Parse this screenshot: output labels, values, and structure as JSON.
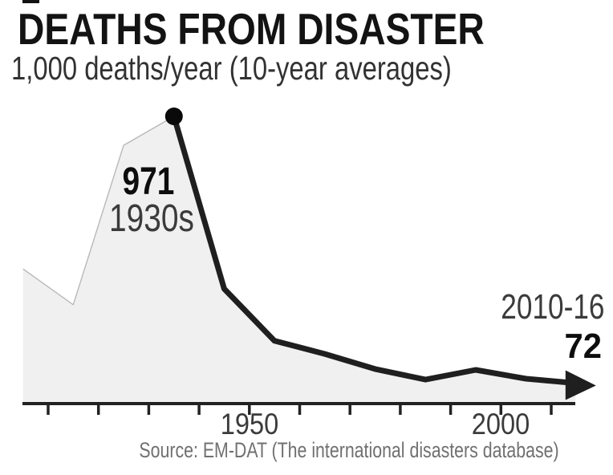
{
  "header": {
    "title": "DEATHS FROM DISASTER",
    "subtitle": "1,000 deaths/year (10-year averages)"
  },
  "annotations": {
    "peak": {
      "value": "971",
      "decade": "1930s"
    },
    "end": {
      "period": "2010-16",
      "value": "72"
    }
  },
  "footer": {
    "source": "Source: EM-DAT (The international disasters database)"
  },
  "chart_data": {
    "type": "area",
    "title": "DEATHS FROM DISASTER",
    "subtitle": "1,000 deaths/year (10-year averages)",
    "unit": "1,000 deaths/year (10-year averages)",
    "x_axis": {
      "tick_years": [
        1910,
        1920,
        1930,
        1940,
        1950,
        1960,
        1970,
        1980,
        1990,
        2000,
        2010
      ],
      "labeled_ticks": [
        {
          "year": 1950,
          "label": "1950"
        },
        {
          "year": 2000,
          "label": "2000"
        }
      ],
      "range": [
        1905,
        2016
      ],
      "grid": false
    },
    "y_axis": {
      "visible": false,
      "range": [
        0,
        1000
      ]
    },
    "points": [
      {
        "decade": "1900s",
        "year_mid": 1905,
        "value": 455,
        "estimated": true
      },
      {
        "decade": "1910s",
        "year_mid": 1915,
        "value": 334,
        "estimated": true
      },
      {
        "decade": "1920s",
        "year_mid": 1925,
        "value": 873,
        "estimated": true
      },
      {
        "decade": "1930s",
        "year_mid": 1935,
        "value": 971,
        "estimated": false
      },
      {
        "decade": "1940s",
        "year_mid": 1945,
        "value": 388,
        "estimated": true
      },
      {
        "decade": "1950s",
        "year_mid": 1955,
        "value": 212,
        "estimated": true
      },
      {
        "decade": "1960s",
        "year_mid": 1965,
        "value": 168,
        "estimated": true
      },
      {
        "decade": "1970s",
        "year_mid": 1975,
        "value": 117,
        "estimated": true
      },
      {
        "decade": "1980s",
        "year_mid": 1985,
        "value": 81,
        "estimated": true
      },
      {
        "decade": "1990s",
        "year_mid": 1995,
        "value": 114,
        "estimated": true
      },
      {
        "decade": "2000s",
        "year_mid": 2005,
        "value": 84,
        "estimated": true
      },
      {
        "decade": "2010-16",
        "year_mid": 2013,
        "value": 72,
        "estimated": false
      }
    ],
    "highlights": {
      "peak": {
        "decade": "1930s",
        "value": 971
      },
      "latest": {
        "period": "2010-16",
        "value": 72
      }
    },
    "styles": {
      "area_fill": "#f0f0f0",
      "early_line": "#b8b8b8",
      "main_line": "#1f1f1f",
      "axis": "#222222"
    },
    "legend": null
  }
}
